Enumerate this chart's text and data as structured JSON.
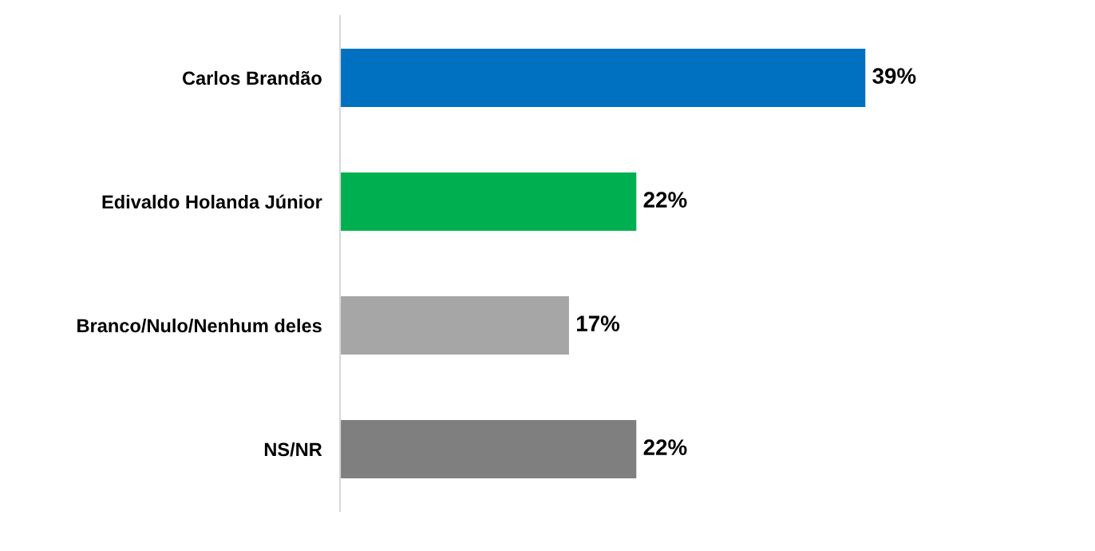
{
  "chart_data": {
    "type": "bar",
    "orientation": "horizontal",
    "categories": [
      "Carlos Brandão",
      "Edivaldo Holanda Júnior",
      "Branco/Nulo/Nenhum deles",
      "NS/NR"
    ],
    "values": [
      39,
      22,
      17,
      22
    ],
    "colors": [
      "#0070c0",
      "#00b050",
      "#a6a6a6",
      "#7f7f7f"
    ],
    "value_labels": [
      "39%",
      "22%",
      "17%",
      "22%"
    ],
    "grid": false,
    "legend": false
  }
}
